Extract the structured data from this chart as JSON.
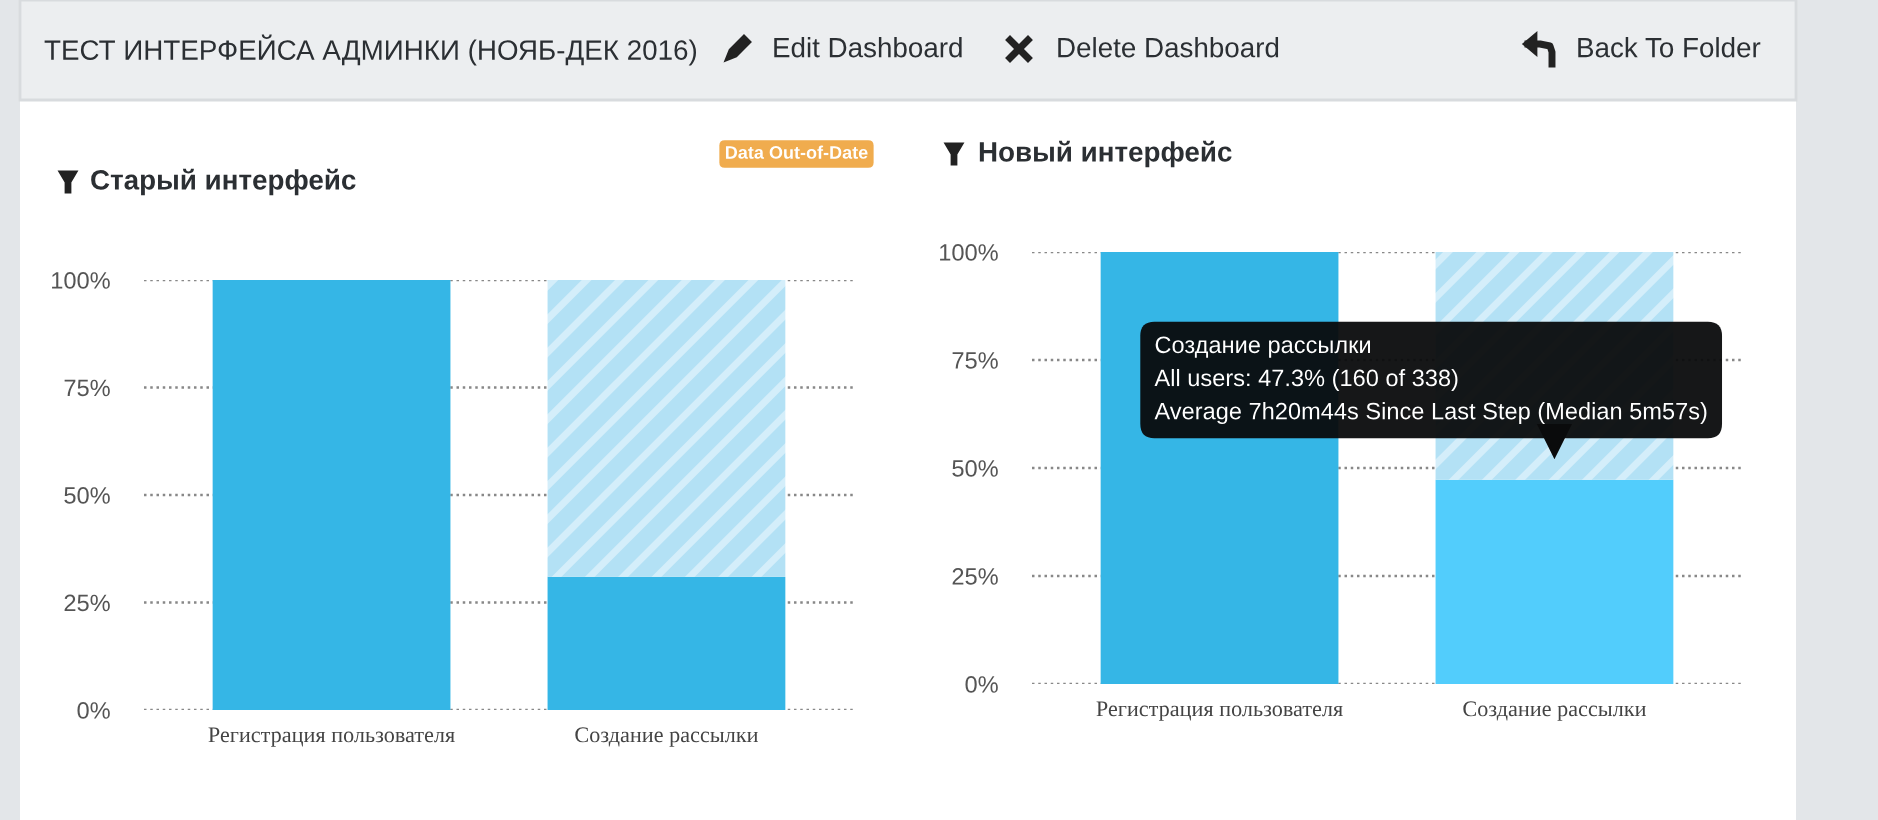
{
  "chart_data": [
    {
      "type": "other",
      "title": "ТЕСТ ИНТЕРФЕЙСА АДМИНКИ (НОЯБ-ДЕК 2016)",
      "annotations": [
        "Edit Dashboard",
        "Delete Dashboard",
        "Back To Folder"
      ]
    },
    {
      "type": "bar",
      "title": "Старый интерфейс",
      "stacked": true,
      "categories": [
        "Регистрация пользователя",
        "Создание рассылки"
      ],
      "series": [
        {
          "colors": [
            "#35b6e6",
            "#35b6e6"
          ],
          "values": [
            100,
            31
          ]
        },
        {
          "color": "#b3e1f5",
          "values": [
            0,
            69
          ]
        }
      ],
      "ylim": [
        0,
        100
      ],
      "yticks": [
        {
          "value": 0,
          "label": "0%"
        },
        {
          "value": 25,
          "label": "25%"
        },
        {
          "value": 50,
          "label": "50%"
        },
        {
          "value": 75,
          "label": "75%"
        },
        {
          "value": 100,
          "label": "100%"
        }
      ],
      "grid": "y",
      "legend": false,
      "annotations": [
        "Data Out-of-Date"
      ]
    },
    {
      "type": "bar",
      "title": "Новый интерфейс",
      "stacked": true,
      "categories": [
        "Регистрация пользователя",
        "Создание рассылки"
      ],
      "series": [
        {
          "colors": [
            "#35b6e6",
            "#52cdfc"
          ],
          "values": [
            100,
            47.3
          ]
        },
        {
          "color": "#b3e1f5",
          "values": [
            0,
            52.7
          ]
        }
      ],
      "ylim": [
        0,
        100
      ],
      "yticks": [
        {
          "value": 0,
          "label": "0%"
        },
        {
          "value": 25,
          "label": "25%"
        },
        {
          "value": 50,
          "label": "50%"
        },
        {
          "value": 75,
          "label": "75%"
        },
        {
          "value": 100,
          "label": "100%"
        }
      ],
      "grid": "y",
      "legend": false,
      "annotations": [
        {
          "text": "Создание рассылки\nAll users: 47.3% (160 of 338)\nAverage 7h20m44s Since Last Step (Median 5m57s)",
          "x": "Создание рассылки",
          "y": 47.3
        }
      ]
    }
  ]
}
